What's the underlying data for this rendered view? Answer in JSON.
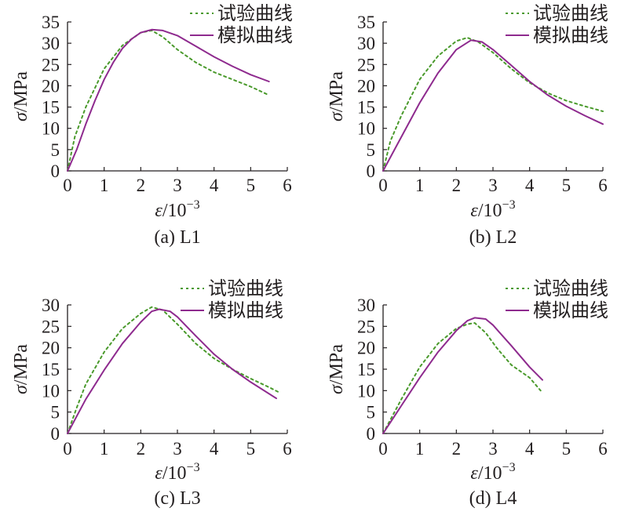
{
  "chart_data": [
    {
      "type": "line",
      "caption": "(a) L1",
      "xlabel_symbol": "ε",
      "xlabel_unit": "/10",
      "xlabel_exp": "−3",
      "ylabel_symbol": "σ",
      "ylabel_unit": "/MPa",
      "xlim": [
        0,
        6
      ],
      "ylim": [
        0,
        35
      ],
      "xticks": [
        0,
        1,
        2,
        3,
        4,
        5,
        6
      ],
      "yticks": [
        0,
        5,
        10,
        15,
        20,
        25,
        30,
        35
      ],
      "legend_position": "top-right",
      "series": [
        {
          "name": "试验曲线",
          "style": "dotted",
          "color": "#4a9a2c",
          "points": [
            [
              0,
              0
            ],
            [
              0.2,
              8
            ],
            [
              0.5,
              15
            ],
            [
              1,
              24
            ],
            [
              1.5,
              29.5
            ],
            [
              2,
              32.5
            ],
            [
              2.3,
              33
            ],
            [
              2.6,
              31.5
            ],
            [
              3,
              28.5
            ],
            [
              3.5,
              25.5
            ],
            [
              4,
              23.2
            ],
            [
              4.5,
              21.5
            ],
            [
              5,
              19.8
            ],
            [
              5.5,
              17.8
            ]
          ]
        },
        {
          "name": "模拟曲线",
          "style": "solid",
          "color": "#8e2a8e",
          "points": [
            [
              0,
              0
            ],
            [
              0.25,
              5
            ],
            [
              0.5,
              11
            ],
            [
              0.75,
              16.5
            ],
            [
              1,
              21.5
            ],
            [
              1.25,
              25.5
            ],
            [
              1.5,
              28.8
            ],
            [
              1.75,
              31
            ],
            [
              2,
              32.5
            ],
            [
              2.3,
              33.2
            ],
            [
              2.6,
              33
            ],
            [
              3,
              31.8
            ],
            [
              3.5,
              29.3
            ],
            [
              4,
              26.8
            ],
            [
              4.5,
              24.6
            ],
            [
              5,
              22.6
            ],
            [
              5.5,
              21
            ]
          ]
        }
      ]
    },
    {
      "type": "line",
      "caption": "(b) L2",
      "xlabel_symbol": "ε",
      "xlabel_unit": "/10",
      "xlabel_exp": "−3",
      "ylabel_symbol": "σ",
      "ylabel_unit": "/MPa",
      "xlim": [
        0,
        6
      ],
      "ylim": [
        0,
        35
      ],
      "xticks": [
        0,
        1,
        2,
        3,
        4,
        5,
        6
      ],
      "yticks": [
        0,
        5,
        10,
        15,
        20,
        25,
        30,
        35
      ],
      "legend_position": "top-right",
      "series": [
        {
          "name": "试验曲线",
          "style": "dotted",
          "color": "#4a9a2c",
          "points": [
            [
              0,
              0
            ],
            [
              0.2,
              7
            ],
            [
              0.5,
              13
            ],
            [
              1,
              21.5
            ],
            [
              1.5,
              27
            ],
            [
              2,
              30.5
            ],
            [
              2.3,
              31.3
            ],
            [
              2.6,
              30.3
            ],
            [
              3,
              27.8
            ],
            [
              3.5,
              24
            ],
            [
              4,
              20.7
            ],
            [
              4.5,
              18.3
            ],
            [
              5,
              16.5
            ],
            [
              5.5,
              15.2
            ],
            [
              6,
              14
            ]
          ]
        },
        {
          "name": "模拟曲线",
          "style": "solid",
          "color": "#8e2a8e",
          "points": [
            [
              0,
              0
            ],
            [
              0.5,
              8
            ],
            [
              1,
              16
            ],
            [
              1.5,
              23
            ],
            [
              2,
              28.5
            ],
            [
              2.4,
              30.7
            ],
            [
              2.7,
              30.3
            ],
            [
              3,
              28.5
            ],
            [
              3.5,
              24.8
            ],
            [
              4,
              21
            ],
            [
              4.5,
              17.8
            ],
            [
              5,
              15.2
            ],
            [
              5.5,
              13
            ],
            [
              6,
              11
            ]
          ]
        }
      ]
    },
    {
      "type": "line",
      "caption": "(c) L3",
      "xlabel_symbol": "ε",
      "xlabel_unit": "/10",
      "xlabel_exp": "−3",
      "ylabel_symbol": "σ",
      "ylabel_unit": "/MPa",
      "xlim": [
        0,
        6
      ],
      "ylim": [
        0,
        30
      ],
      "xticks": [
        0,
        1,
        2,
        3,
        4,
        5,
        6
      ],
      "yticks": [
        0,
        5,
        10,
        15,
        20,
        25,
        30
      ],
      "legend_position": "top-right",
      "series": [
        {
          "name": "试验曲线",
          "style": "dotted",
          "color": "#4a9a2c",
          "points": [
            [
              0,
              0
            ],
            [
              0.25,
              6
            ],
            [
              0.5,
              11.5
            ],
            [
              1,
              19
            ],
            [
              1.5,
              24.5
            ],
            [
              2,
              28
            ],
            [
              2.3,
              29.5
            ],
            [
              2.6,
              28.8
            ],
            [
              3,
              25.5
            ],
            [
              3.5,
              21
            ],
            [
              4,
              17.5
            ],
            [
              4.5,
              15
            ],
            [
              5,
              12.8
            ],
            [
              5.5,
              10.8
            ],
            [
              5.8,
              9.5
            ]
          ]
        },
        {
          "name": "模拟曲线",
          "style": "solid",
          "color": "#8e2a8e",
          "points": [
            [
              0,
              0
            ],
            [
              0.5,
              8
            ],
            [
              1,
              14.8
            ],
            [
              1.5,
              21
            ],
            [
              2,
              26
            ],
            [
              2.3,
              28.5
            ],
            [
              2.5,
              29
            ],
            [
              2.8,
              28.5
            ],
            [
              3,
              27.2
            ],
            [
              3.5,
              22.8
            ],
            [
              4,
              18.5
            ],
            [
              4.5,
              15
            ],
            [
              5,
              12
            ],
            [
              5.7,
              8.2
            ]
          ]
        }
      ]
    },
    {
      "type": "line",
      "caption": "(d) L4",
      "xlabel_symbol": "ε",
      "xlabel_unit": "/10",
      "xlabel_exp": "−3",
      "ylabel_symbol": "σ",
      "ylabel_unit": "/MPa",
      "xlim": [
        0,
        6
      ],
      "ylim": [
        0,
        30
      ],
      "xticks": [
        0,
        1,
        2,
        3,
        4,
        5,
        6
      ],
      "yticks": [
        0,
        5,
        10,
        15,
        20,
        25,
        30
      ],
      "legend_position": "top-right",
      "series": [
        {
          "name": "试验曲线",
          "style": "dotted",
          "color": "#4a9a2c",
          "points": [
            [
              0,
              0
            ],
            [
              0.5,
              8
            ],
            [
              1,
              15.5
            ],
            [
              1.5,
              21
            ],
            [
              2,
              24.5
            ],
            [
              2.3,
              25.5
            ],
            [
              2.5,
              25.8
            ],
            [
              2.8,
              23.5
            ],
            [
              3.1,
              20
            ],
            [
              3.5,
              16
            ],
            [
              4,
              13
            ],
            [
              4.3,
              10
            ]
          ]
        },
        {
          "name": "模拟曲线",
          "style": "solid",
          "color": "#8e2a8e",
          "points": [
            [
              0,
              0
            ],
            [
              0.5,
              6.5
            ],
            [
              1,
              13
            ],
            [
              1.5,
              19
            ],
            [
              2,
              24
            ],
            [
              2.3,
              26.3
            ],
            [
              2.5,
              27
            ],
            [
              2.8,
              26.7
            ],
            [
              3,
              25.3
            ],
            [
              3.5,
              20.5
            ],
            [
              4,
              15.5
            ],
            [
              4.35,
              12.5
            ]
          ]
        }
      ]
    }
  ]
}
